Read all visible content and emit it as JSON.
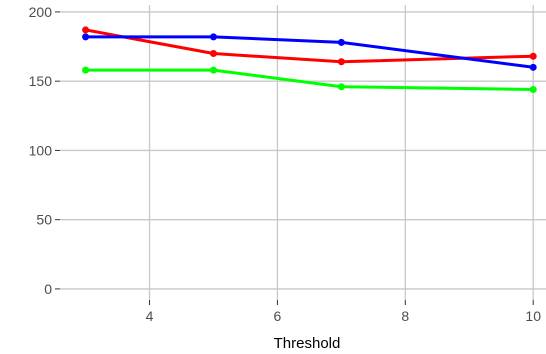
{
  "chart_data": {
    "type": "line",
    "title": "",
    "xlabel": "Threshold",
    "ylabel": "",
    "x": [
      3,
      5,
      7,
      10
    ],
    "xlim": [
      2.6,
      10.2
    ],
    "ylim": [
      -8,
      205
    ],
    "x_ticks": [
      4,
      6,
      8,
      10
    ],
    "y_ticks": [
      0,
      50,
      100,
      150,
      200
    ],
    "grid": true,
    "legend": "none",
    "series": [
      {
        "color": "#ff0000",
        "values": [
          187,
          170,
          164,
          168
        ]
      },
      {
        "color": "#00ff00",
        "values": [
          158,
          158,
          146,
          144
        ]
      },
      {
        "color": "#0000ff",
        "values": [
          182,
          182,
          178,
          160
        ]
      }
    ]
  }
}
